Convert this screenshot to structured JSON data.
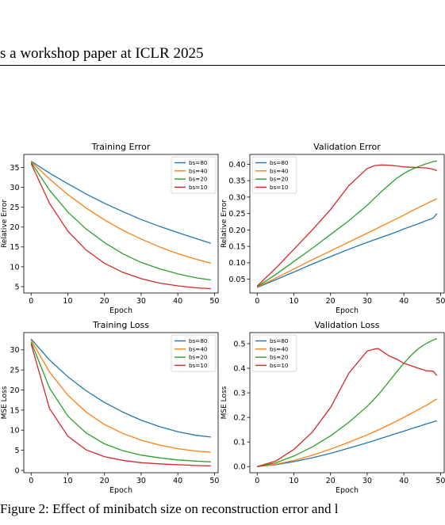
{
  "page": {
    "header": "s a workshop paper at ICLR 2025",
    "caption": "Figure 2: Effect of minibatch size on reconstruction error and l"
  },
  "colors": {
    "bs=80": "#1f77b4",
    "bs=40": "#ff7f0e",
    "bs=20": "#2ca02c",
    "bs=10": "#d62728"
  },
  "chart_data": [
    {
      "type": "line",
      "title": "Training Error",
      "xlabel": "Epoch",
      "ylabel": "Relative Error",
      "xlim": [
        -2,
        51
      ],
      "ylim": [
        3.4,
        38.3
      ],
      "xticks": [
        0,
        10,
        20,
        30,
        40,
        50
      ],
      "yticks": [
        5,
        10,
        15,
        20,
        25,
        30,
        35
      ],
      "tick_labels": [
        "5",
        "10",
        "15",
        "20",
        "25",
        "30",
        "35"
      ],
      "legend": "top-right",
      "x": [
        0,
        5,
        10,
        15,
        20,
        25,
        30,
        35,
        40,
        45,
        49
      ],
      "series": [
        {
          "name": "bs=80",
          "values": [
            36.6,
            33.6,
            30.9,
            28.3,
            26.0,
            23.9,
            21.9,
            20.2,
            18.6,
            17.1,
            15.9
          ]
        },
        {
          "name": "bs=40",
          "values": [
            36.5,
            32.1,
            28.2,
            24.8,
            21.8,
            19.2,
            17.0,
            15.0,
            13.3,
            11.9,
            10.9
          ]
        },
        {
          "name": "bs=20",
          "values": [
            36.3,
            29.3,
            23.8,
            19.5,
            16.1,
            13.3,
            11.1,
            9.5,
            8.2,
            7.2,
            6.7
          ]
        },
        {
          "name": "bs=10",
          "values": [
            36.0,
            26.0,
            19.0,
            14.2,
            10.9,
            8.6,
            7.0,
            5.9,
            5.2,
            4.7,
            4.5
          ]
        }
      ]
    },
    {
      "type": "line",
      "title": "Validation Error",
      "xlabel": "Epoch",
      "ylabel": "Relative Error",
      "xlim": [
        -2,
        51
      ],
      "ylim": [
        0.008,
        0.43
      ],
      "xticks": [
        0,
        10,
        20,
        30,
        40,
        50
      ],
      "yticks": [
        0.05,
        0.1,
        0.15,
        0.2,
        0.25,
        0.3,
        0.35,
        0.4
      ],
      "tick_labels": [
        "0.05",
        "0.10",
        "0.15",
        "0.20",
        "0.25",
        "0.30",
        "0.35",
        "0.40"
      ],
      "legend": "top-left",
      "x": [
        0,
        5,
        10,
        15,
        20,
        25,
        30,
        32,
        34,
        36,
        38,
        40,
        42,
        44,
        46,
        48,
        49
      ],
      "series": [
        {
          "name": "bs=80",
          "values": [
            0.025,
            0.048,
            0.072,
            0.096,
            0.119,
            0.141,
            0.162,
            0.17,
            0.178,
            0.186,
            0.194,
            0.203,
            0.211,
            0.219,
            0.228,
            0.236,
            0.25
          ]
        },
        {
          "name": "bs=40",
          "values": [
            0.026,
            0.053,
            0.081,
            0.109,
            0.136,
            0.163,
            0.19,
            0.201,
            0.212,
            0.223,
            0.234,
            0.245,
            0.257,
            0.268,
            0.279,
            0.29,
            0.295
          ]
        },
        {
          "name": "bs=20",
          "values": [
            0.027,
            0.064,
            0.104,
            0.144,
            0.186,
            0.228,
            0.275,
            0.297,
            0.318,
            0.338,
            0.357,
            0.372,
            0.384,
            0.393,
            0.401,
            0.408,
            0.41
          ]
        },
        {
          "name": "bs=10",
          "values": [
            0.029,
            0.083,
            0.141,
            0.2,
            0.262,
            0.335,
            0.387,
            0.396,
            0.398,
            0.397,
            0.395,
            0.392,
            0.391,
            0.39,
            0.389,
            0.385,
            0.38
          ]
        }
      ]
    },
    {
      "type": "line",
      "title": "Training Loss",
      "xlabel": "Epoch",
      "ylabel": "MSE Loss",
      "xlim": [
        -2,
        51
      ],
      "ylim": [
        -0.6,
        34.3
      ],
      "xticks": [
        0,
        10,
        20,
        30,
        40,
        50
      ],
      "yticks": [
        0,
        5,
        10,
        15,
        20,
        25,
        30
      ],
      "tick_labels": [
        "0",
        "5",
        "10",
        "15",
        "20",
        "25",
        "30"
      ],
      "legend": "top-right",
      "x": [
        0,
        5,
        10,
        15,
        20,
        25,
        30,
        35,
        40,
        45,
        49
      ],
      "series": [
        {
          "name": "bs=80",
          "values": [
            32.7,
            27.5,
            23.3,
            19.8,
            16.9,
            14.5,
            12.5,
            10.9,
            9.6,
            8.7,
            8.3
          ]
        },
        {
          "name": "bs=40",
          "values": [
            32.4,
            24.5,
            18.7,
            14.5,
            11.4,
            9.2,
            7.5,
            6.3,
            5.4,
            4.8,
            4.5
          ]
        },
        {
          "name": "bs=20",
          "values": [
            32.0,
            20.5,
            13.5,
            9.3,
            6.6,
            4.9,
            3.8,
            3.1,
            2.6,
            2.3,
            2.1
          ]
        },
        {
          "name": "bs=10",
          "values": [
            31.5,
            15.4,
            8.5,
            5.1,
            3.4,
            2.5,
            1.9,
            1.6,
            1.4,
            1.2,
            1.1
          ]
        }
      ]
    },
    {
      "type": "line",
      "title": "Validation Loss",
      "xlabel": "Epoch",
      "ylabel": "MSE Loss",
      "xlim": [
        -2,
        51
      ],
      "ylim": [
        -0.025,
        0.545
      ],
      "xticks": [
        0,
        10,
        20,
        30,
        40,
        50
      ],
      "yticks": [
        0.0,
        0.1,
        0.2,
        0.3,
        0.4,
        0.5
      ],
      "tick_labels": [
        "0.0",
        "0.1",
        "0.2",
        "0.3",
        "0.4",
        "0.5"
      ],
      "legend": "top-left",
      "x": [
        0,
        5,
        10,
        15,
        20,
        25,
        30,
        32,
        33,
        34,
        36,
        38,
        40,
        42,
        44,
        46,
        48,
        49
      ],
      "series": [
        {
          "name": "bs=80",
          "values": [
            0.0,
            0.008,
            0.02,
            0.036,
            0.054,
            0.075,
            0.097,
            0.106,
            0.111,
            0.116,
            0.125,
            0.135,
            0.144,
            0.154,
            0.163,
            0.173,
            0.182,
            0.186
          ]
        },
        {
          "name": "bs=40",
          "values": [
            0.0,
            0.009,
            0.025,
            0.046,
            0.071,
            0.099,
            0.129,
            0.142,
            0.149,
            0.156,
            0.17,
            0.185,
            0.2,
            0.216,
            0.232,
            0.248,
            0.266,
            0.275
          ]
        },
        {
          "name": "bs=20",
          "values": [
            0.0,
            0.015,
            0.043,
            0.08,
            0.125,
            0.18,
            0.245,
            0.276,
            0.292,
            0.31,
            0.347,
            0.385,
            0.42,
            0.453,
            0.48,
            0.5,
            0.515,
            0.52
          ]
        },
        {
          "name": "bs=10",
          "values": [
            0.0,
            0.022,
            0.07,
            0.14,
            0.24,
            0.38,
            0.47,
            0.478,
            0.48,
            0.47,
            0.45,
            0.437,
            0.42,
            0.41,
            0.4,
            0.39,
            0.388,
            0.37
          ]
        }
      ]
    }
  ]
}
